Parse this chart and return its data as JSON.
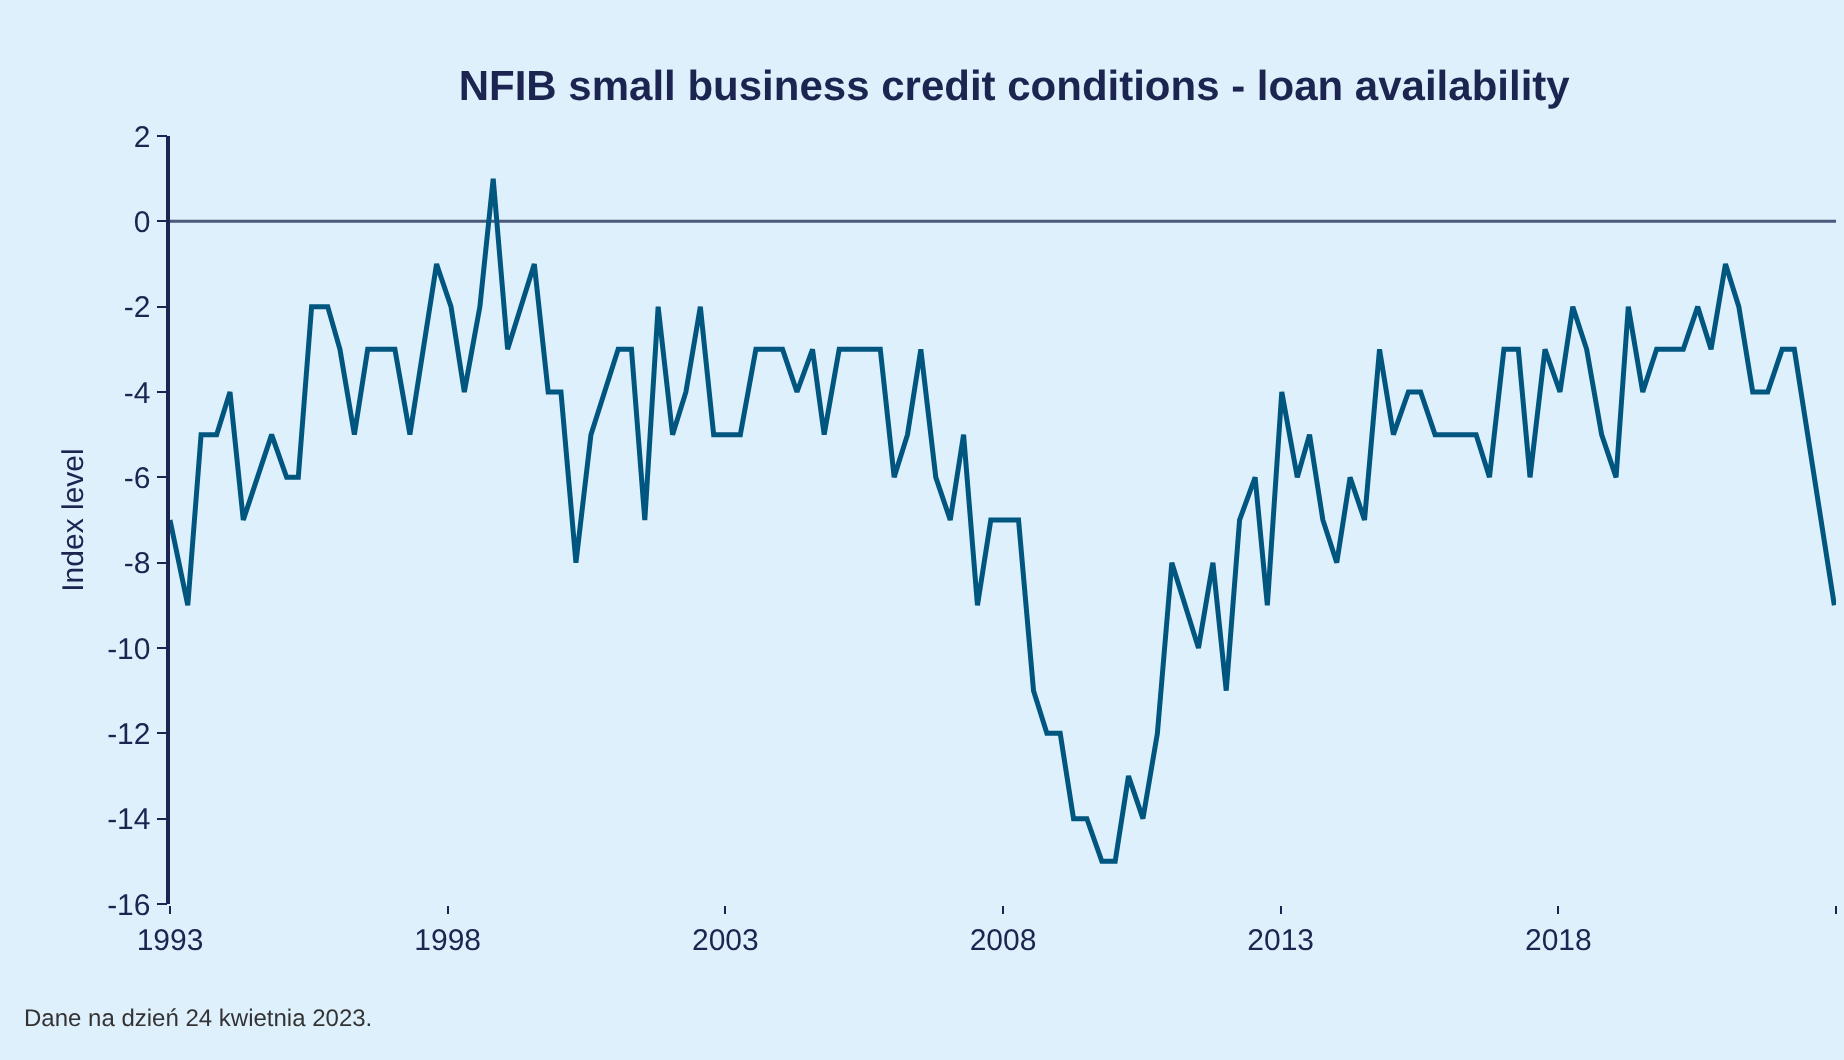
{
  "chart_data": {
    "type": "line",
    "title": "NFIB small business credit conditions - loan availability",
    "ylabel": "Index level",
    "annotations": [
      "Dane na dzień 24 kwietnia 2023."
    ],
    "series": [
      {
        "color": "#00567f",
        "x": [
          1993.0,
          1993.32,
          1993.56,
          1993.84,
          1994.08,
          1994.32,
          1994.83,
          1995.1,
          1995.31,
          1995.55,
          1995.84,
          1996.06,
          1996.32,
          1996.56,
          1997.05,
          1997.32,
          1997.8,
          1998.06,
          1998.3,
          1998.58,
          1998.82,
          1999.08,
          1999.56,
          1999.81,
          2000.04,
          2000.31,
          2000.58,
          2001.07,
          2001.31,
          2001.55,
          2001.79,
          2002.05,
          2002.29,
          2002.55,
          2002.79,
          2003.27,
          2003.55,
          2004.03,
          2004.29,
          2004.57,
          2004.78,
          2005.05,
          2005.79,
          2006.04,
          2006.28,
          2006.52,
          2006.79,
          2007.05,
          2007.29,
          2007.54,
          2007.78,
          2008.28,
          2008.55,
          2008.79,
          2009.03,
          2009.27,
          2009.51,
          2009.78,
          2010.02,
          2010.26,
          2010.52,
          2010.78,
          2011.04,
          2011.52,
          2011.78,
          2012.02,
          2012.26,
          2012.54,
          2012.76,
          2013.02,
          2013.3,
          2013.52,
          2013.76,
          2014.01,
          2014.25,
          2014.51,
          2014.78,
          2015.03,
          2015.3,
          2015.52,
          2015.78,
          2016.52,
          2016.76,
          2017.02,
          2017.28,
          2017.49,
          2017.76,
          2018.03,
          2018.26,
          2018.51,
          2018.78,
          2019.04,
          2019.26,
          2019.52,
          2019.77,
          2020.25,
          2020.51,
          2020.75,
          2021.01,
          2021.25,
          2021.5,
          2021.77,
          2022.03,
          2022.25,
          2022.97
        ],
        "values": [
          -7,
          -9,
          -5,
          -5,
          -4,
          -7,
          -5,
          -6,
          -6,
          -2,
          -2,
          -3,
          -5,
          -3,
          -3,
          -5,
          -1,
          -2,
          -4,
          -2,
          1,
          -3,
          -1,
          -4,
          -4,
          -8,
          -5,
          -3,
          -3,
          -7,
          -2,
          -5,
          -4,
          -2,
          -5,
          -5,
          -3,
          -3,
          -4,
          -3,
          -5,
          -3,
          -3,
          -6,
          -5,
          -3,
          -6,
          -7,
          -5,
          -9,
          -7,
          -7,
          -11,
          -12,
          -12,
          -14,
          -14,
          -15,
          -15,
          -13,
          -14,
          -12,
          -8,
          -10,
          -8,
          -11,
          -7,
          -6,
          -9,
          -4,
          -6,
          -5,
          -7,
          -8,
          -6,
          -7,
          -3,
          -5,
          -4,
          -4,
          -5,
          -5,
          -6,
          -3,
          -3,
          -6,
          -3,
          -4,
          -2,
          -3,
          -5,
          -6,
          -2,
          -4,
          -3,
          -3,
          -2,
          -3,
          -1,
          -2,
          -4,
          -4,
          -3,
          -3,
          -9
        ]
      }
    ],
    "xlim": [
      1993,
      2023
    ],
    "xticks": [
      1993,
      1998,
      2003,
      2008,
      2013,
      2018,
      {
        "value": 2023,
        "label": null
      }
    ],
    "ylim": [
      -16,
      2
    ],
    "yticks": [
      -16,
      -14,
      -12,
      -10,
      -8,
      -6,
      -4,
      -2,
      0,
      2
    ],
    "ref_lines": [
      {
        "axis": "y",
        "value": 0,
        "color": "#4a5a7a"
      }
    ],
    "grid": false,
    "legend": false,
    "marker": "none",
    "line_style": "solid"
  }
}
